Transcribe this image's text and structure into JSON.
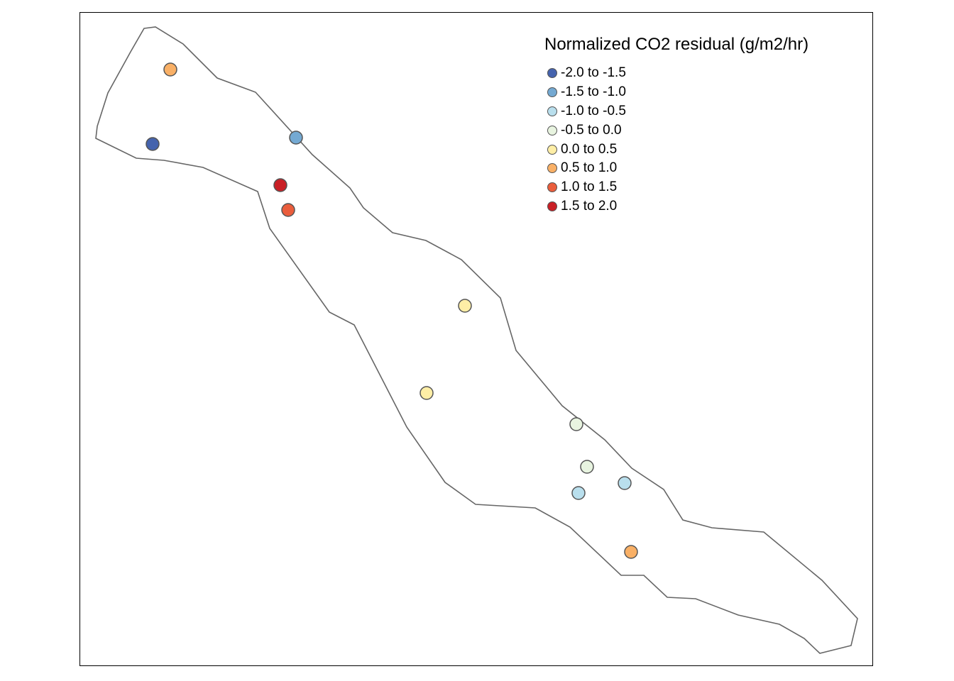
{
  "legend": {
    "title": "Normalized CO2 residual (g/m2/hr)",
    "classes": [
      {
        "label": "-2.0 to -1.5",
        "color": "#4563ad"
      },
      {
        "label": "-1.5 to -1.0",
        "color": "#74a9d2"
      },
      {
        "label": "-1.0 to -0.5",
        "color": "#b9dfed"
      },
      {
        "label": "-0.5 to 0.0",
        "color": "#e8f4e0"
      },
      {
        "label": "0.0 to 0.5",
        "color": "#feeea6"
      },
      {
        "label": "0.5 to 1.0",
        "color": "#f9b066"
      },
      {
        "label": "1.0 to 1.5",
        "color": "#ea5d3c"
      },
      {
        "label": "1.5 to 2.0",
        "color": "#c91f25"
      }
    ]
  },
  "map": {
    "outline_color": "#666666",
    "frame_color": "#000000",
    "point_stroke": "#555555",
    "points_class_index": [
      5,
      0,
      1,
      7,
      6,
      4,
      4,
      3,
      3,
      2,
      2,
      5
    ]
  }
}
